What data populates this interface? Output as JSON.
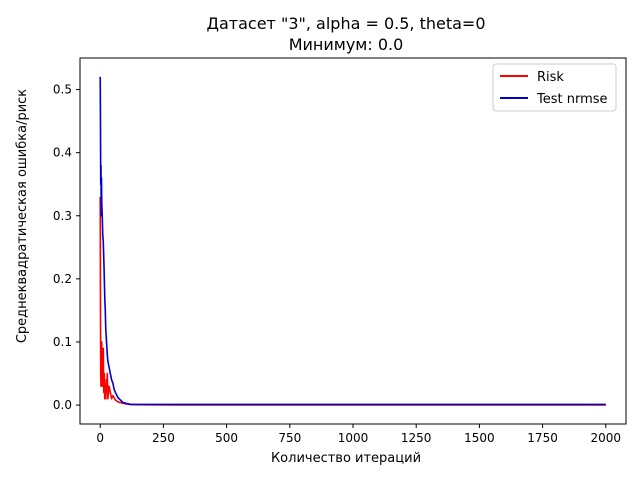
{
  "chart_data": {
    "type": "line",
    "title": "Датасет \"3\", alpha = 0.5, theta=0",
    "subtitle": "Минимум: 0.0",
    "xlabel": "Количество итераций",
    "ylabel": "Среднеквадратическая ошибка/риск",
    "xlim": [
      -80,
      2080
    ],
    "ylim": [
      -0.03,
      0.55
    ],
    "xticks": [
      0,
      250,
      500,
      750,
      1000,
      1250,
      1500,
      1750,
      2000
    ],
    "xtick_labels": [
      "0",
      "250",
      "500",
      "750",
      "1000",
      "1250",
      "1500",
      "1750",
      "2000"
    ],
    "yticks": [
      0.0,
      0.1,
      0.2,
      0.3,
      0.4,
      0.5
    ],
    "ytick_labels": [
      "0.0",
      "0.1",
      "0.2",
      "0.3",
      "0.4",
      "0.5"
    ],
    "grid": false,
    "legend_position": "top-right",
    "series": [
      {
        "name": "Risk",
        "color": "#ff0000",
        "x": [
          0,
          1,
          2,
          3,
          4,
          5,
          6,
          7,
          8,
          9,
          10,
          12,
          14,
          16,
          18,
          20,
          22,
          24,
          26,
          28,
          30,
          35,
          40,
          45,
          50,
          60,
          70,
          80,
          90,
          100,
          120,
          150,
          200,
          300,
          500,
          1000,
          1500,
          2000
        ],
        "y": [
          0.33,
          0.15,
          0.05,
          0.03,
          0.06,
          0.08,
          0.1,
          0.04,
          0.03,
          0.06,
          0.04,
          0.09,
          0.02,
          0.05,
          0.01,
          0.03,
          0.01,
          0.04,
          0.02,
          0.05,
          0.01,
          0.03,
          0.02,
          0.01,
          0.015,
          0.008,
          0.005,
          0.004,
          0.003,
          0.002,
          0.001,
          0.0005,
          0.0003,
          0.0002,
          0.0001,
          0.0001,
          0.0001,
          0.0001
        ]
      },
      {
        "name": "Test nrmse",
        "color": "#0000cc",
        "x": [
          0,
          1,
          2,
          3,
          4,
          5,
          6,
          8,
          10,
          12,
          15,
          18,
          20,
          22,
          25,
          28,
          30,
          35,
          40,
          45,
          50,
          55,
          60,
          70,
          80,
          90,
          100,
          110,
          120,
          130,
          150,
          200,
          300,
          500,
          750,
          1000,
          1250,
          1500,
          1750,
          2000
        ],
        "y": [
          0.52,
          0.45,
          0.35,
          0.38,
          0.3,
          0.36,
          0.32,
          0.3,
          0.27,
          0.26,
          0.22,
          0.17,
          0.15,
          0.12,
          0.1,
          0.08,
          0.07,
          0.06,
          0.05,
          0.04,
          0.035,
          0.025,
          0.02,
          0.012,
          0.008,
          0.004,
          0.003,
          0.002,
          0.001,
          0.001,
          0.001,
          0.001,
          0.001,
          0.001,
          0.001,
          0.001,
          0.001,
          0.001,
          0.001,
          0.001
        ]
      }
    ]
  }
}
